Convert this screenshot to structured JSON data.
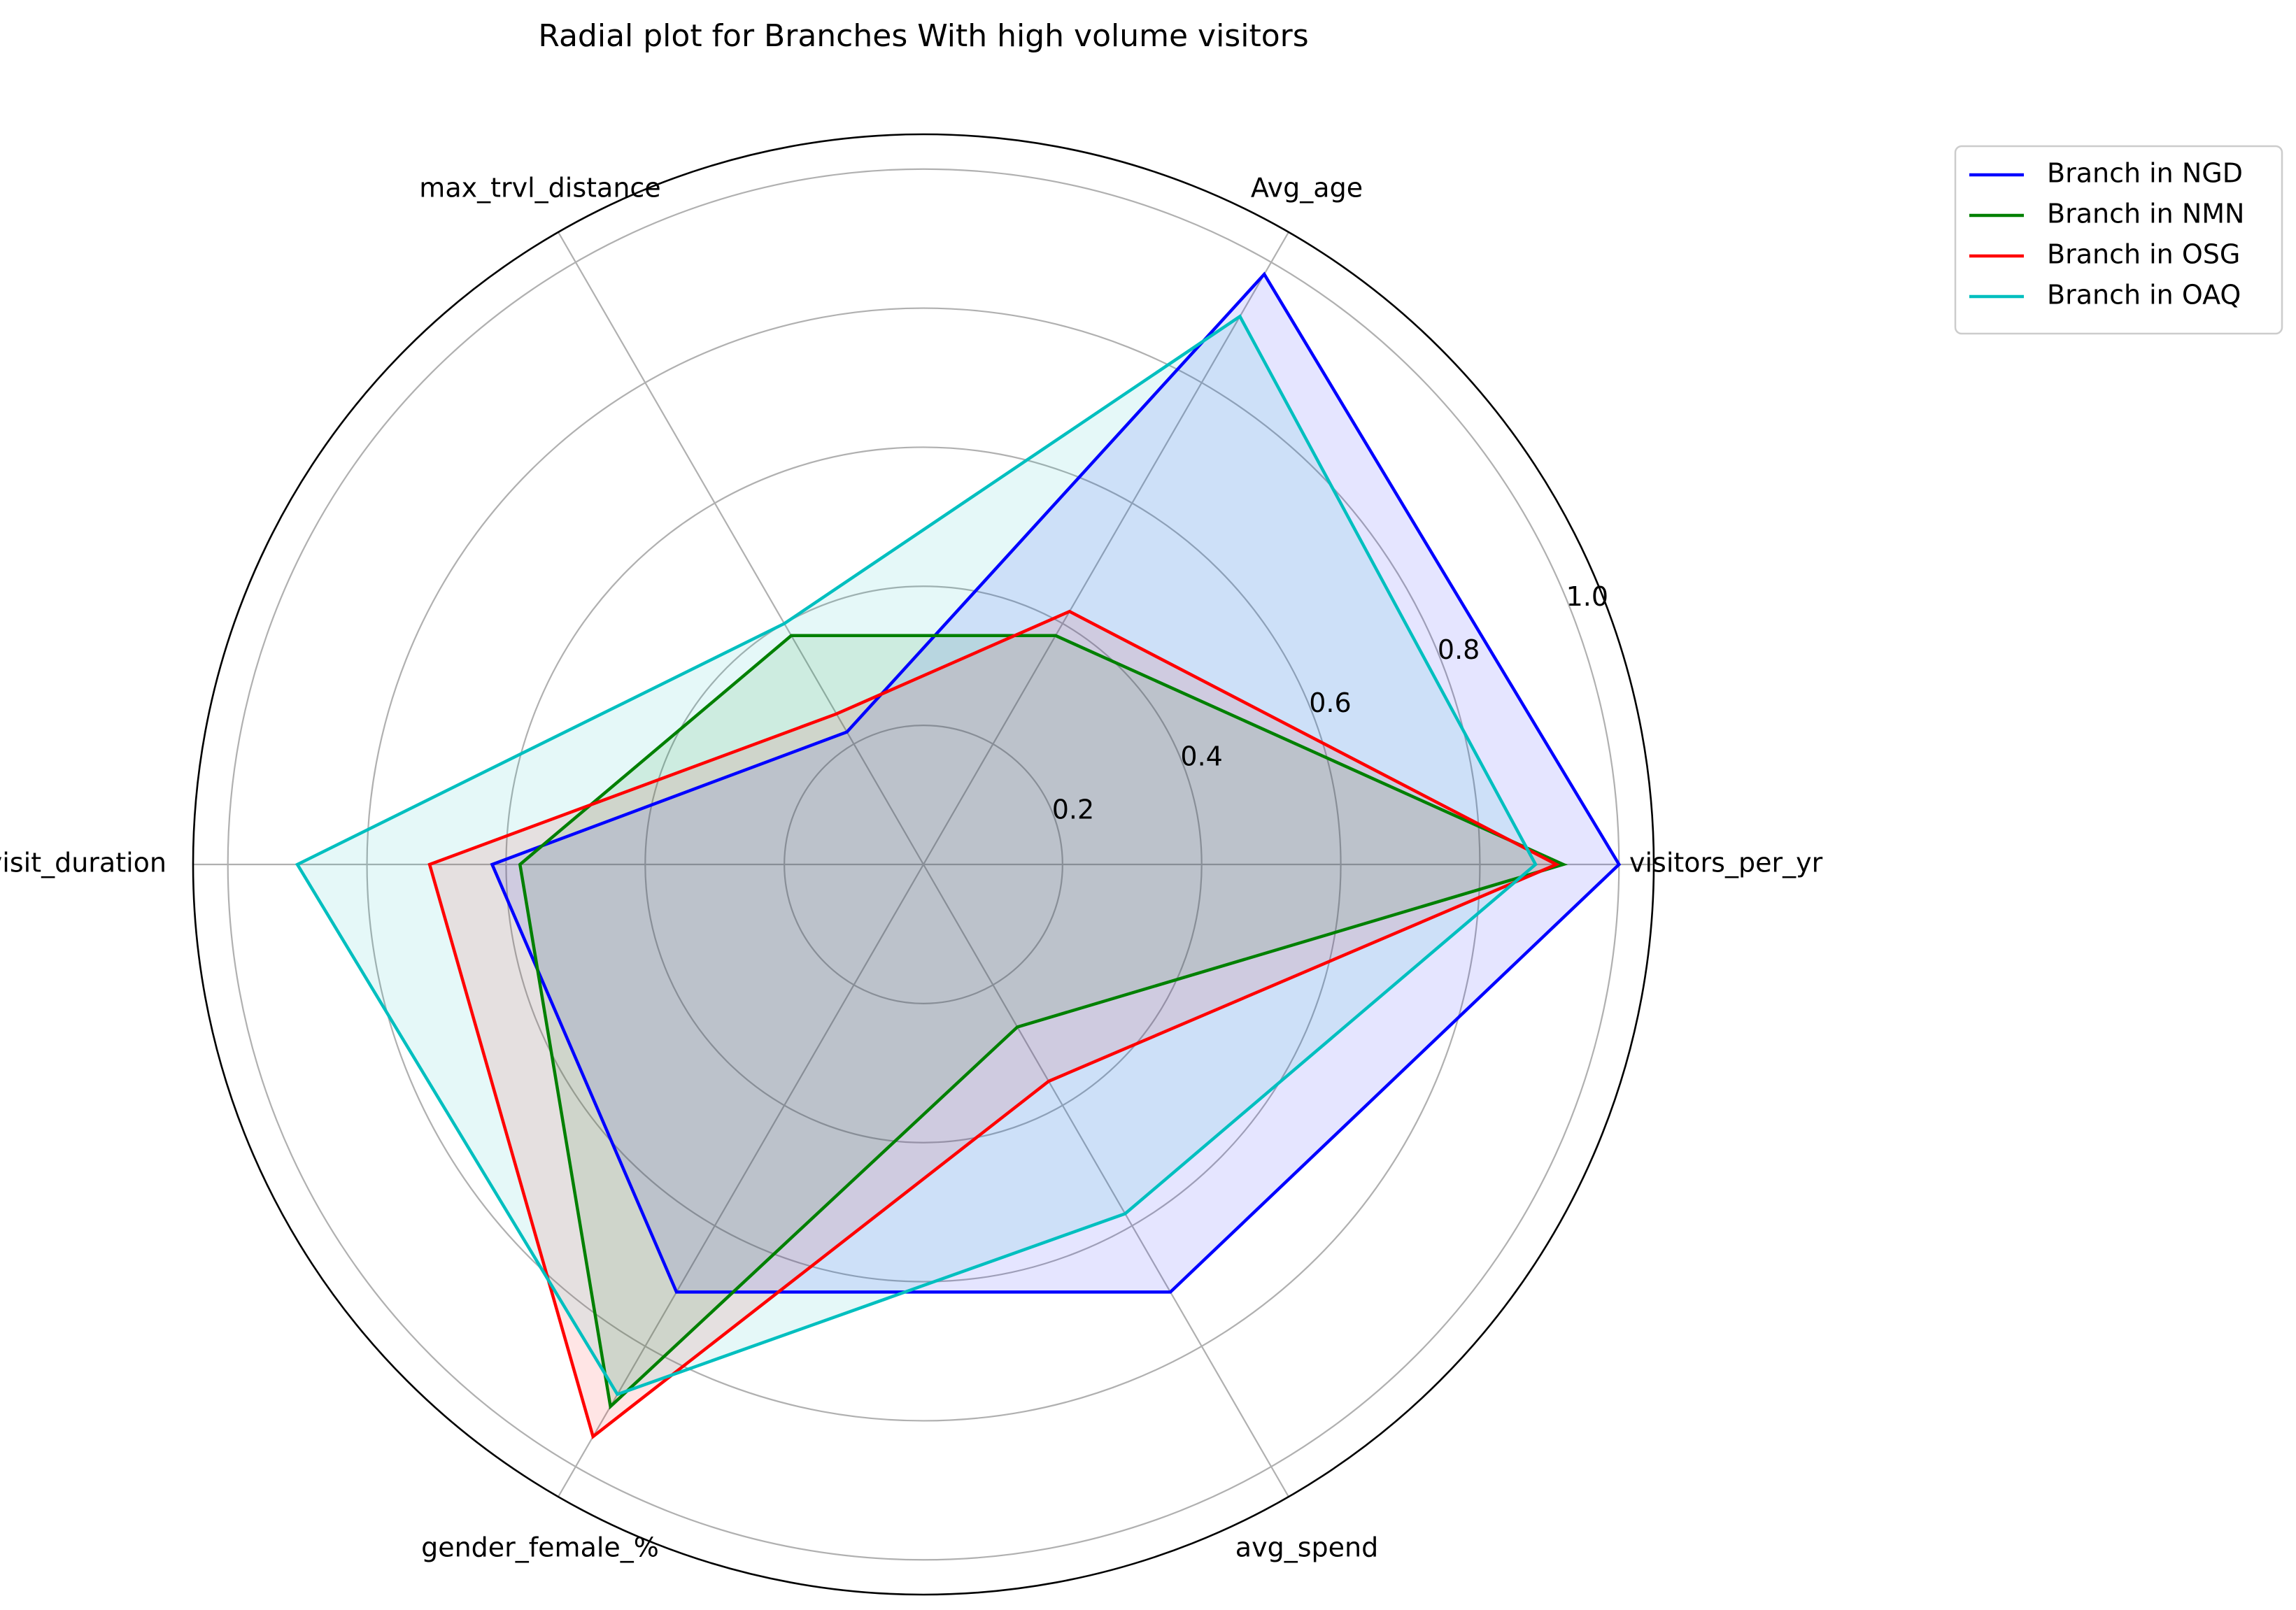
{
  "chart_data": {
    "type": "radar",
    "title": "Radial plot for Branches With high volume visitors",
    "axes": [
      "visitors_per_yr",
      "Avg_age",
      "max_trvl_distance",
      "avg_visit_duration",
      "gender_female_%",
      "avg_spend"
    ],
    "rlim": [
      0,
      1.05
    ],
    "r_ticks": [
      0.2,
      0.4,
      0.6,
      0.8,
      1.0
    ],
    "r_tick_labels": [
      "0.2",
      "0.4",
      "0.6",
      "0.8",
      "1.0"
    ],
    "grid": true,
    "legend_position": "top-right",
    "series": [
      {
        "name": "Branch in NGD",
        "color": "#0000ff",
        "fill": "#0000ff",
        "fill_opacity": 0.1,
        "values": [
          1.0,
          0.98,
          0.22,
          0.62,
          0.71,
          0.71
        ]
      },
      {
        "name": "Branch in NMN",
        "color": "#008000",
        "fill": "#008000",
        "fill_opacity": 0.1,
        "values": [
          0.92,
          0.38,
          0.38,
          0.58,
          0.9,
          0.27
        ]
      },
      {
        "name": "Branch in OSG",
        "color": "#ff0000",
        "fill": "#ff0000",
        "fill_opacity": 0.1,
        "values": [
          0.91,
          0.42,
          0.25,
          0.71,
          0.95,
          0.36
        ]
      },
      {
        "name": "Branch in OAQ",
        "color": "#00bfbf",
        "fill": "#00bfbf",
        "fill_opacity": 0.1,
        "values": [
          0.88,
          0.91,
          0.4,
          0.9,
          0.88,
          0.58
        ]
      }
    ]
  }
}
